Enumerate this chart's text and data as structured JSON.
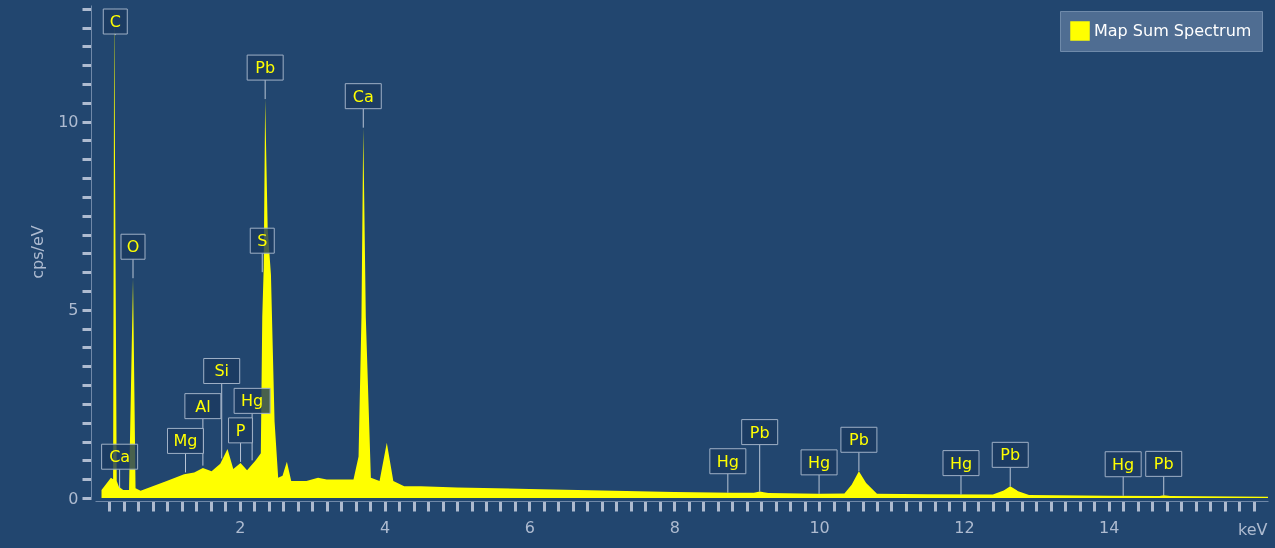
{
  "chart_data": {
    "type": "area",
    "xlabel": "keV",
    "ylabel": "cps/eV",
    "xlim": [
      0,
      16.2
    ],
    "ylim": [
      0,
      13.1
    ],
    "xticks": [
      {
        "value": 0.2,
        "label": null
      },
      {
        "value": 0.4,
        "label": null
      },
      {
        "value": 0.6,
        "label": null
      },
      {
        "value": 0.8,
        "label": null
      },
      {
        "value": 1,
        "label": null
      },
      {
        "value": 1.2,
        "label": null
      },
      {
        "value": 1.4,
        "label": null
      },
      {
        "value": 1.6,
        "label": null
      },
      {
        "value": 1.8,
        "label": null
      },
      2,
      {
        "value": 2.2,
        "label": null
      },
      {
        "value": 2.4,
        "label": null
      },
      {
        "value": 2.6,
        "label": null
      },
      {
        "value": 2.8,
        "label": null
      },
      {
        "value": 3,
        "label": null
      },
      {
        "value": 3.2,
        "label": null
      },
      {
        "value": 3.4,
        "label": null
      },
      {
        "value": 3.6,
        "label": null
      },
      {
        "value": 3.8,
        "label": null
      },
      4,
      {
        "value": 4.2,
        "label": null
      },
      {
        "value": 4.4,
        "label": null
      },
      {
        "value": 4.6,
        "label": null
      },
      {
        "value": 4.8,
        "label": null
      },
      {
        "value": 5,
        "label": null
      },
      {
        "value": 5.2,
        "label": null
      },
      {
        "value": 5.4,
        "label": null
      },
      {
        "value": 5.6,
        "label": null
      },
      {
        "value": 5.8,
        "label": null
      },
      6,
      {
        "value": 6.2,
        "label": null
      },
      {
        "value": 6.4,
        "label": null
      },
      {
        "value": 6.6,
        "label": null
      },
      {
        "value": 6.8,
        "label": null
      },
      {
        "value": 7,
        "label": null
      },
      {
        "value": 7.2,
        "label": null
      },
      {
        "value": 7.4,
        "label": null
      },
      {
        "value": 7.6,
        "label": null
      },
      {
        "value": 7.8,
        "label": null
      },
      8,
      {
        "value": 8.2,
        "label": null
      },
      {
        "value": 8.4,
        "label": null
      },
      {
        "value": 8.6,
        "label": null
      },
      {
        "value": 8.8,
        "label": null
      },
      {
        "value": 9,
        "label": null
      },
      {
        "value": 9.2,
        "label": null
      },
      {
        "value": 9.4,
        "label": null
      },
      {
        "value": 9.6,
        "label": null
      },
      {
        "value": 9.8,
        "label": null
      },
      10,
      {
        "value": 10.2,
        "label": null
      },
      {
        "value": 10.4,
        "label": null
      },
      {
        "value": 10.6,
        "label": null
      },
      {
        "value": 10.8,
        "label": null
      },
      {
        "value": 11,
        "label": null
      },
      {
        "value": 11.2,
        "label": null
      },
      {
        "value": 11.4,
        "label": null
      },
      {
        "value": 11.6,
        "label": null
      },
      {
        "value": 11.8,
        "label": null
      },
      12,
      {
        "value": 12.2,
        "label": null
      },
      {
        "value": 12.4,
        "label": null
      },
      {
        "value": 12.6,
        "label": null
      },
      {
        "value": 12.8,
        "label": null
      },
      {
        "value": 13,
        "label": null
      },
      {
        "value": 13.2,
        "label": null
      },
      {
        "value": 13.4,
        "label": null
      },
      {
        "value": 13.6,
        "label": null
      },
      {
        "value": 13.8,
        "label": null
      },
      14,
      {
        "value": 14.2,
        "label": null
      },
      {
        "value": 14.4,
        "label": null
      },
      {
        "value": 14.6,
        "label": null
      },
      {
        "value": 14.8,
        "label": null
      },
      {
        "value": 15,
        "label": null
      },
      {
        "value": 15.2,
        "label": null
      },
      {
        "value": 15.4,
        "label": null
      },
      {
        "value": 15.6,
        "label": null
      },
      {
        "value": 15.8,
        "label": null
      },
      {
        "value": 16,
        "label": null
      }
    ],
    "yticks": [
      0,
      {
        "value": 0.5,
        "label": null
      },
      {
        "value": 1,
        "label": null
      },
      {
        "value": 1.5,
        "label": null
      },
      {
        "value": 2,
        "label": null
      },
      {
        "value": 2.5,
        "label": null
      },
      {
        "value": 3,
        "label": null
      },
      {
        "value": 3.5,
        "label": null
      },
      {
        "value": 4,
        "label": null
      },
      {
        "value": 4.5,
        "label": null
      },
      5,
      {
        "value": 5.5,
        "label": null
      },
      {
        "value": 6,
        "label": null
      },
      {
        "value": 6.5,
        "label": null
      },
      {
        "value": 7,
        "label": null
      },
      {
        "value": 7.5,
        "label": null
      },
      {
        "value": 8,
        "label": null
      },
      {
        "value": 8.5,
        "label": null
      },
      {
        "value": 9,
        "label": null
      },
      {
        "value": 9.5,
        "label": null
      },
      10,
      {
        "value": 10.5,
        "label": null
      },
      {
        "value": 11,
        "label": null
      },
      {
        "value": 11.5,
        "label": null
      },
      {
        "value": 12,
        "label": null
      },
      {
        "value": 12.5,
        "label": null
      },
      {
        "value": 13,
        "label": null
      }
    ],
    "legend": "top right",
    "grid": false,
    "series": [
      {
        "name": "Map Sum Spectrum",
        "color": "#ffff00",
        "x": [
          0.09,
          0.22,
          0.25,
          0.265,
          0.3,
          0.33,
          0.39,
          0.47,
          0.525,
          0.56,
          0.63,
          0.99,
          1.23,
          1.37,
          1.49,
          1.61,
          1.73,
          1.83,
          1.91,
          2.01,
          2.1,
          2.22,
          2.29,
          2.31,
          2.33,
          2.35,
          2.385,
          2.43,
          2.48,
          2.53,
          2.59,
          2.65,
          2.71,
          2.92,
          3.08,
          3.2,
          3.57,
          3.64,
          3.68,
          3.705,
          3.74,
          3.81,
          3.93,
          4.03,
          4.12,
          4.27,
          4.5,
          5,
          6,
          7,
          8,
          8.8,
          9.1,
          9.18,
          9.3,
          10,
          10.35,
          10.45,
          10.55,
          10.65,
          10.8,
          11.5,
          12.4,
          12.55,
          12.64,
          12.75,
          12.9,
          14,
          14.7,
          14.76,
          14.85,
          16.2
        ],
        "values": [
          0.21,
          0.54,
          0.5,
          13.1,
          0.45,
          0.3,
          0.21,
          0.21,
          5.84,
          0.26,
          0.19,
          0.45,
          0.63,
          0.68,
          0.8,
          0.71,
          0.91,
          1.3,
          0.77,
          0.93,
          0.74,
          1.0,
          1.19,
          4.81,
          6.12,
          10.6,
          7.14,
          5.93,
          2.03,
          0.54,
          0.59,
          0.96,
          0.45,
          0.45,
          0.54,
          0.49,
          0.49,
          1.1,
          4.81,
          9.84,
          4.81,
          0.54,
          0.45,
          1.47,
          0.45,
          0.31,
          0.31,
          0.28,
          0.24,
          0.2,
          0.16,
          0.14,
          0.14,
          0.17,
          0.13,
          0.11,
          0.12,
          0.35,
          0.71,
          0.4,
          0.11,
          0.1,
          0.09,
          0.2,
          0.31,
          0.18,
          0.08,
          0.06,
          0.05,
          0.07,
          0.05,
          0.03
        ]
      }
    ],
    "annotations": [
      {
        "text": "C",
        "x": 0.28,
        "y": 12.3
      },
      {
        "text": "Ca",
        "x": 0.34,
        "y": 0.26
      },
      {
        "text": "O",
        "x": 0.525,
        "y": 5.84
      },
      {
        "text": "Mg",
        "x": 1.25,
        "y": 0.68
      },
      {
        "text": "Al",
        "x": 1.49,
        "y": 0.86
      },
      {
        "text": "Si",
        "x": 1.75,
        "y": 1.05
      },
      {
        "text": "P",
        "x": 2.01,
        "y": 0.96
      },
      {
        "text": "Hg",
        "x": 2.17,
        "y": 1.0
      },
      {
        "text": "S",
        "x": 2.31,
        "y": 6.0
      },
      {
        "text": "Pb",
        "x": 2.35,
        "y": 10.6
      },
      {
        "text": "Ca",
        "x": 3.705,
        "y": 9.84
      },
      {
        "text": "Hg",
        "x": 8.74,
        "y": 0.14
      },
      {
        "text": "Pb",
        "x": 9.18,
        "y": 0.17
      },
      {
        "text": "Hg",
        "x": 10.0,
        "y": 0.11
      },
      {
        "text": "Pb",
        "x": 10.55,
        "y": 0.71
      },
      {
        "text": "Hg",
        "x": 11.96,
        "y": 0.09
      },
      {
        "text": "Pb",
        "x": 12.64,
        "y": 0.31
      },
      {
        "text": "Hg",
        "x": 14.2,
        "y": 0.06
      },
      {
        "text": "Pb",
        "x": 14.76,
        "y": 0.07
      }
    ]
  }
}
